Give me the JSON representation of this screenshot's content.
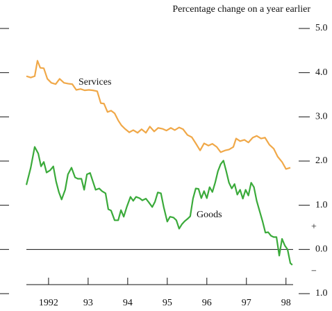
{
  "chart_data": {
    "type": "line",
    "title": "Percentage change on a year earlier",
    "xlim": [
      1991.94,
      1998.68
    ],
    "xticks": [
      {
        "value": 1992.5,
        "label": "1992"
      },
      {
        "value": 1993.5,
        "label": "93"
      },
      {
        "value": 1994.5,
        "label": "94"
      },
      {
        "value": 1995.5,
        "label": "95"
      },
      {
        "value": 1996.5,
        "label": "96"
      },
      {
        "value": 1997.5,
        "label": "97"
      },
      {
        "value": 1998.5,
        "label": "98"
      }
    ],
    "ylim": [
      -1,
      5
    ],
    "yticks": [
      {
        "value": 5,
        "label": "5.0"
      },
      {
        "value": 4,
        "label": "4.0"
      },
      {
        "value": 3,
        "label": "3.0"
      },
      {
        "value": 2,
        "label": "2.0"
      },
      {
        "value": 1,
        "label": "1.0"
      },
      {
        "value": 0,
        "label": "0.0"
      },
      {
        "value": -1,
        "label": "1.0"
      }
    ],
    "annotations": [
      "+",
      "−"
    ],
    "series": [
      {
        "name": "Services",
        "color": "#f0a848",
        "x": [
          1991.94,
          1992.05,
          1992.15,
          1992.22,
          1992.29,
          1992.38,
          1992.47,
          1992.57,
          1992.68,
          1992.78,
          1992.89,
          1993.0,
          1993.1,
          1993.2,
          1993.31,
          1993.41,
          1993.52,
          1993.62,
          1993.73,
          1993.82,
          1993.9,
          1993.99,
          1994.08,
          1994.17,
          1994.26,
          1994.34,
          1994.43,
          1994.54,
          1994.64,
          1994.75,
          1994.85,
          1994.96,
          1995.06,
          1995.17,
          1995.27,
          1995.38,
          1995.48,
          1995.59,
          1995.69,
          1995.8,
          1995.9,
          1996.01,
          1996.12,
          1996.22,
          1996.33,
          1996.43,
          1996.54,
          1996.64,
          1996.75,
          1996.85,
          1996.96,
          1997.06,
          1997.17,
          1997.24,
          1997.34,
          1997.45,
          1997.55,
          1997.66,
          1997.76,
          1997.87,
          1997.97,
          1998.08,
          1998.19,
          1998.29,
          1998.4,
          1998.5,
          1998.61
        ],
        "values": [
          3.92,
          3.89,
          3.92,
          4.27,
          4.11,
          4.1,
          3.86,
          3.77,
          3.74,
          3.86,
          3.77,
          3.75,
          3.74,
          3.61,
          3.63,
          3.6,
          3.61,
          3.6,
          3.58,
          3.31,
          3.3,
          3.11,
          3.14,
          3.08,
          2.92,
          2.81,
          2.73,
          2.65,
          2.7,
          2.64,
          2.72,
          2.64,
          2.78,
          2.67,
          2.75,
          2.73,
          2.69,
          2.75,
          2.7,
          2.76,
          2.72,
          2.59,
          2.54,
          2.4,
          2.24,
          2.4,
          2.35,
          2.39,
          2.32,
          2.2,
          2.24,
          2.26,
          2.32,
          2.51,
          2.45,
          2.48,
          2.42,
          2.53,
          2.57,
          2.51,
          2.53,
          2.37,
          2.28,
          2.1,
          1.98,
          1.82,
          1.85
        ]
      },
      {
        "name": "Goods",
        "color": "#3aaa3a",
        "x": [
          1991.94,
          1992.05,
          1992.15,
          1992.24,
          1992.31,
          1992.38,
          1992.45,
          1992.54,
          1992.62,
          1992.69,
          1992.76,
          1992.83,
          1992.92,
          1992.99,
          1993.08,
          1993.17,
          1993.24,
          1993.33,
          1993.4,
          1993.47,
          1993.55,
          1993.62,
          1993.69,
          1993.78,
          1993.85,
          1993.94,
          1994.01,
          1994.08,
          1994.17,
          1994.26,
          1994.33,
          1994.4,
          1994.48,
          1994.57,
          1994.64,
          1994.71,
          1994.8,
          1994.87,
          1994.96,
          1995.03,
          1995.12,
          1995.19,
          1995.26,
          1995.34,
          1995.41,
          1995.5,
          1995.57,
          1995.66,
          1995.73,
          1995.8,
          1995.87,
          1995.94,
          1996.01,
          1996.08,
          1996.15,
          1996.22,
          1996.29,
          1996.36,
          1996.43,
          1996.5,
          1996.57,
          1996.64,
          1996.71,
          1996.78,
          1996.85,
          1996.92,
          1996.99,
          1997.06,
          1997.13,
          1997.2,
          1997.27,
          1997.34,
          1997.41,
          1997.48,
          1997.55,
          1997.62,
          1997.69,
          1997.76,
          1997.83,
          1997.91,
          1997.98,
          1998.05,
          1998.12,
          1998.19,
          1998.26,
          1998.33,
          1998.4,
          1998.47,
          1998.54,
          1998.61,
          1998.66
        ],
        "values": [
          1.46,
          1.85,
          2.32,
          2.17,
          1.88,
          1.98,
          1.74,
          1.79,
          1.88,
          1.54,
          1.3,
          1.13,
          1.35,
          1.7,
          1.85,
          1.63,
          1.6,
          1.6,
          1.35,
          1.7,
          1.73,
          1.54,
          1.35,
          1.38,
          1.32,
          1.27,
          0.91,
          0.88,
          0.66,
          0.66,
          0.89,
          0.74,
          0.97,
          1.19,
          1.1,
          1.19,
          1.16,
          1.11,
          1.15,
          1.07,
          0.96,
          1.08,
          1.29,
          1.27,
          0.96,
          0.63,
          0.74,
          0.72,
          0.66,
          0.47,
          0.57,
          0.64,
          0.69,
          0.75,
          1.15,
          1.38,
          1.37,
          1.16,
          1.32,
          1.16,
          1.41,
          1.3,
          1.51,
          1.77,
          1.93,
          2.01,
          1.77,
          1.51,
          1.38,
          1.48,
          1.24,
          1.35,
          1.15,
          1.35,
          1.22,
          1.51,
          1.41,
          1.1,
          0.88,
          0.63,
          0.38,
          0.39,
          0.31,
          0.28,
          0.28,
          -0.14,
          0.24,
          0.09,
          0.0,
          -0.31,
          -0.35
        ]
      }
    ]
  }
}
